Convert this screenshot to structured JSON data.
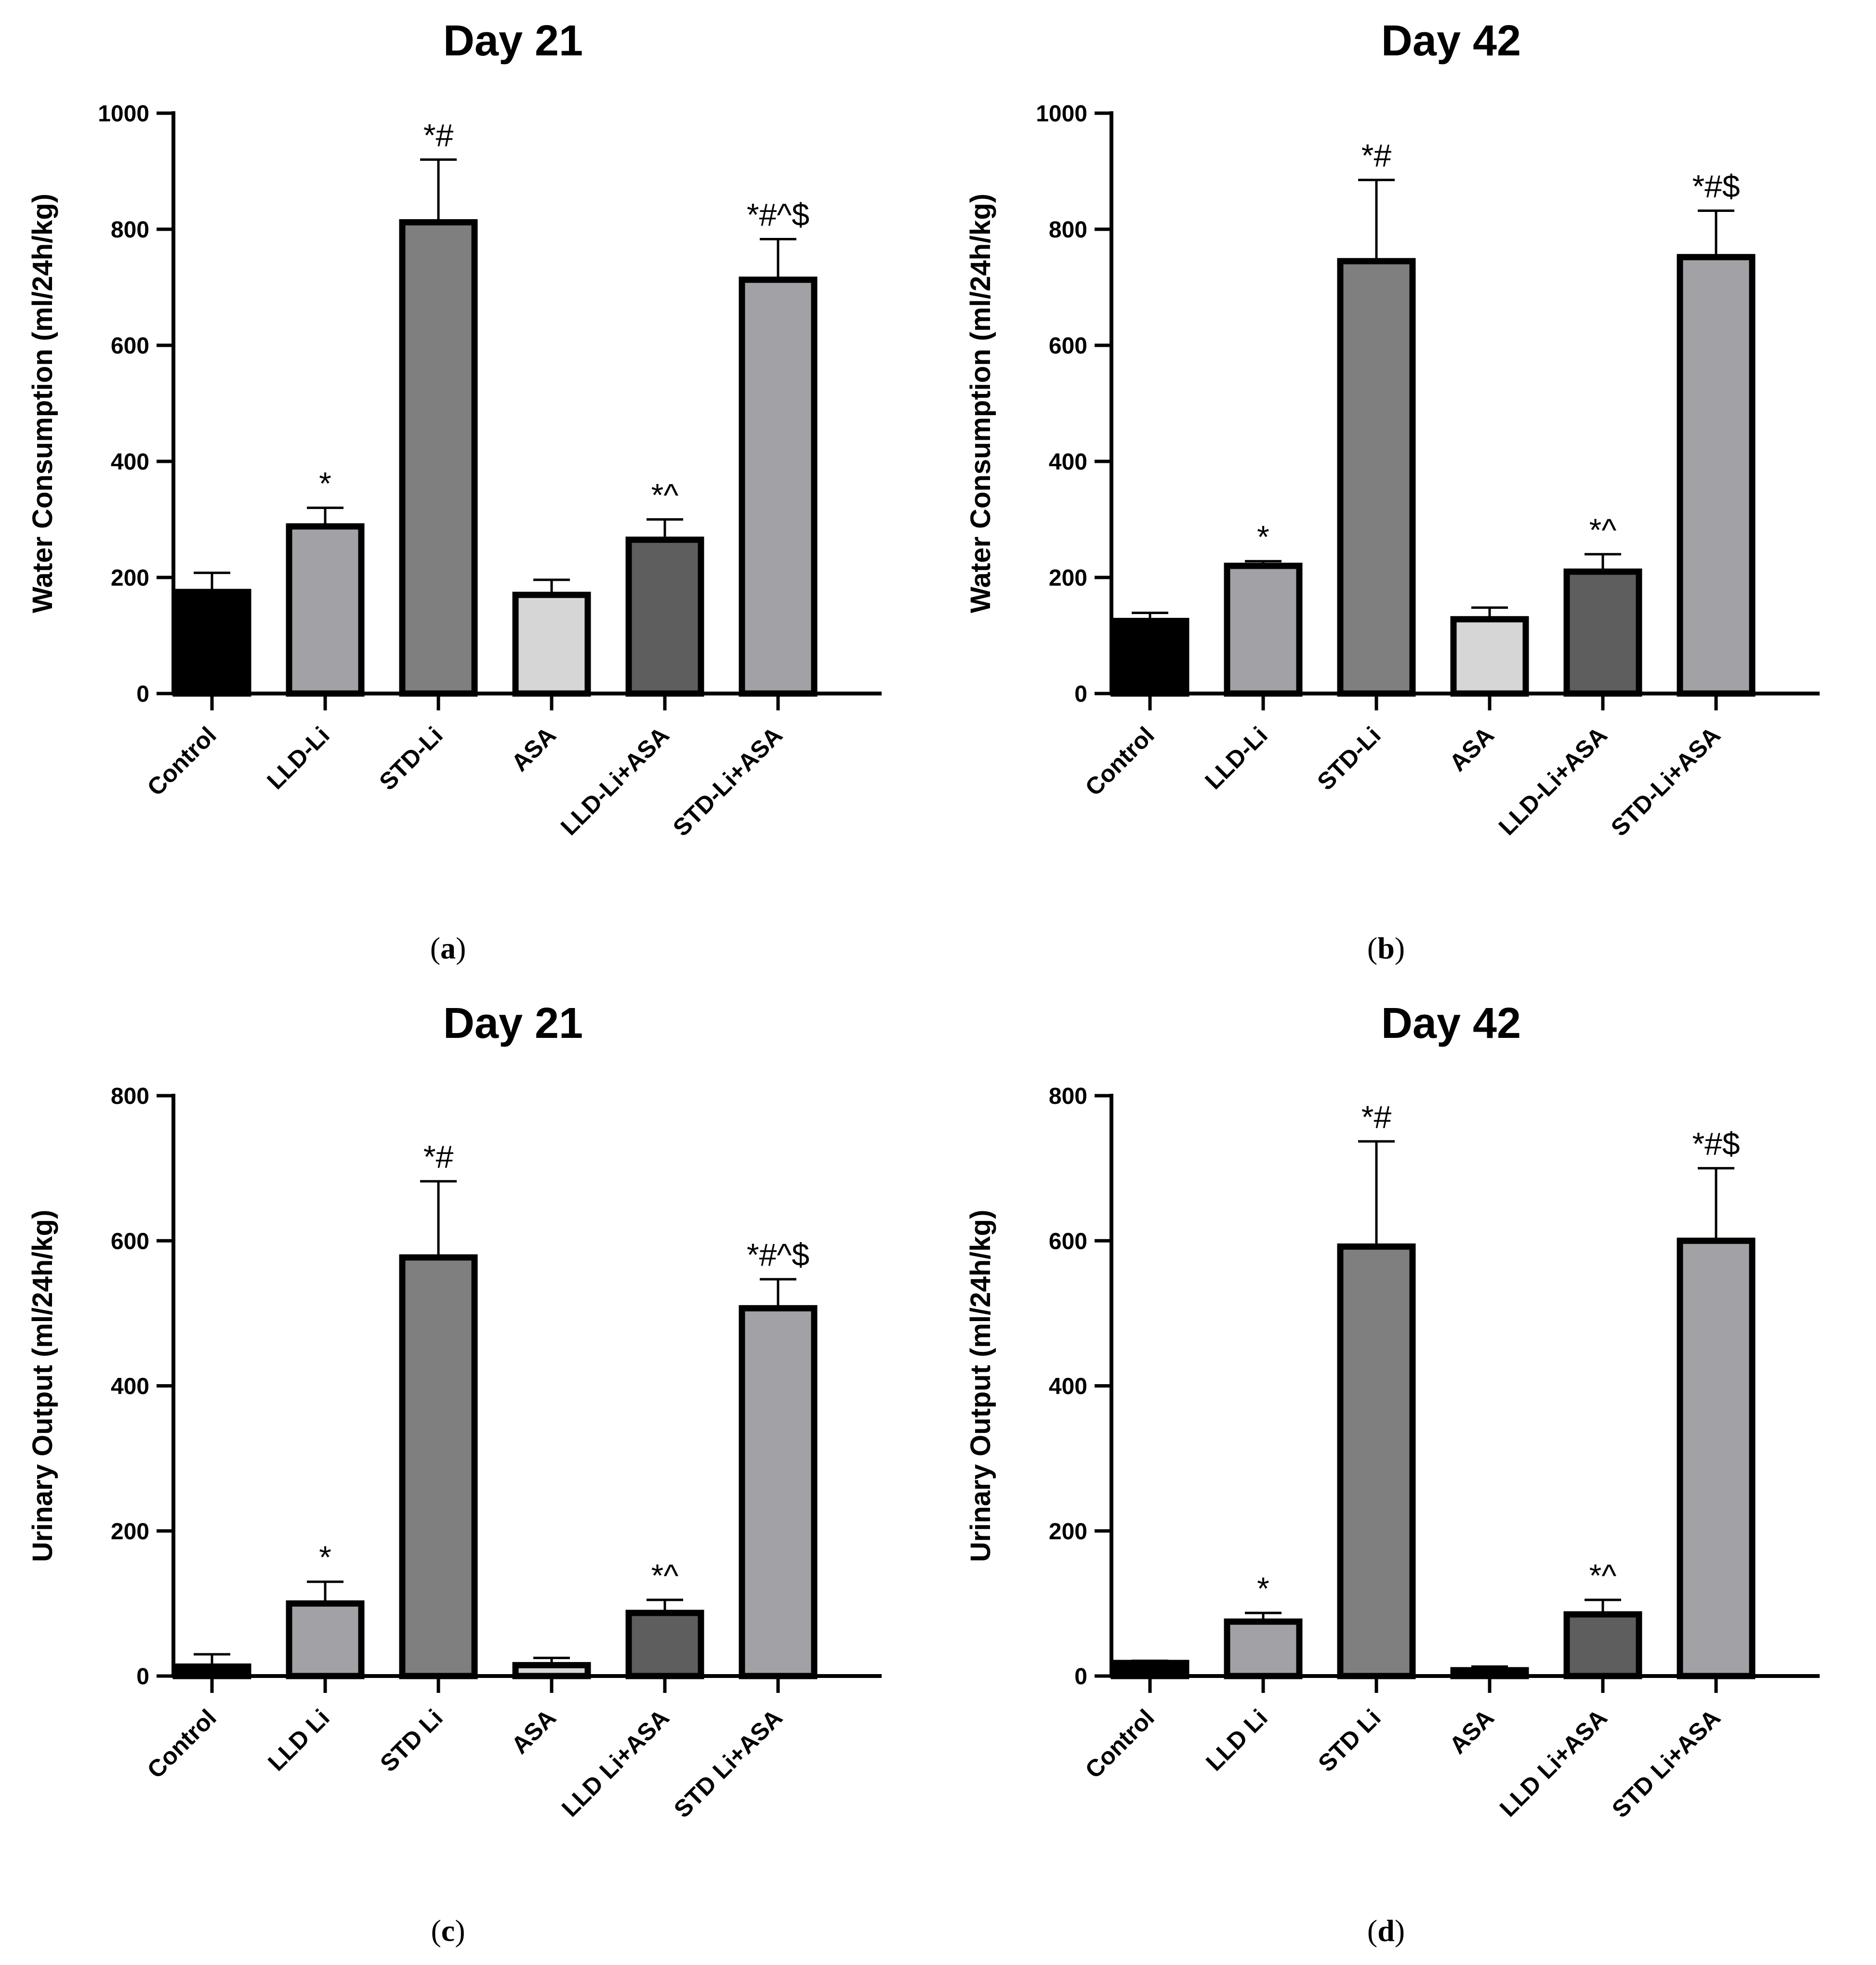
{
  "chart_data": [
    {
      "id": "a",
      "panel_label": "a",
      "type": "bar",
      "title": "Day 21",
      "ylabel": "Water Consumption (ml/24h/kg)",
      "xlabel": "",
      "ylim": [
        0,
        1000
      ],
      "yticks": [
        0,
        200,
        400,
        600,
        800,
        1000
      ],
      "categories": [
        "Control",
        "LLD-Li",
        "STD-Li",
        "ASA",
        "LLD-Li+ASA",
        "STD-Li+ASA"
      ],
      "values": [
        175,
        288,
        812,
        170,
        265,
        713
      ],
      "errors": [
        33,
        32,
        108,
        26,
        35,
        70
      ],
      "significance": [
        "",
        "*",
        "*#",
        "",
        "*^",
        "*#^$"
      ],
      "colors": [
        "#000000",
        "#a2a2a6",
        "#7f7f7f",
        "#d6d6d6",
        "#5e5e5e",
        "#a2a2a6"
      ],
      "grid": false
    },
    {
      "id": "b",
      "panel_label": "b",
      "type": "bar",
      "title": "Day 42",
      "ylabel": "Water Consumption (ml/24h/kg)",
      "xlabel": "",
      "ylim": [
        0,
        1000
      ],
      "yticks": [
        0,
        200,
        400,
        600,
        800,
        1000
      ],
      "categories": [
        "Control",
        "LLD-Li",
        "STD-Li",
        "ASA",
        "LLD-Li+ASA",
        "STD-Li+ASA"
      ],
      "values": [
        125,
        220,
        745,
        128,
        210,
        752
      ],
      "errors": [
        14,
        8,
        140,
        20,
        30,
        80
      ],
      "significance": [
        "",
        "*",
        "*#",
        "",
        "*^",
        "*#$"
      ],
      "colors": [
        "#000000",
        "#a2a2a6",
        "#7f7f7f",
        "#d6d6d6",
        "#5e5e5e",
        "#a2a2a6"
      ],
      "grid": false
    },
    {
      "id": "c",
      "panel_label": "c",
      "type": "bar",
      "title": "Day 21",
      "ylabel": "Urinary Output (ml/24h/kg)",
      "xlabel": "",
      "ylim": [
        0,
        800
      ],
      "yticks": [
        0,
        200,
        400,
        600,
        800
      ],
      "categories": [
        "Control",
        "LLD Li",
        "STD Li",
        "ASA",
        "LLD Li+ASA",
        "STD Li+ASA"
      ],
      "values": [
        13,
        100,
        577,
        15,
        87,
        507
      ],
      "errors": [
        17,
        30,
        105,
        10,
        18,
        40
      ],
      "significance": [
        "",
        "*",
        "*#",
        "",
        "*^",
        "*#^$"
      ],
      "colors": [
        "#000000",
        "#a2a2a6",
        "#7f7f7f",
        "#d6d6d6",
        "#5e5e5e",
        "#a2a2a6"
      ],
      "grid": false
    },
    {
      "id": "d",
      "panel_label": "d",
      "type": "bar",
      "title": "Day 42",
      "ylabel": "Urinary Output (ml/24h/kg)",
      "xlabel": "",
      "ylim": [
        0,
        800
      ],
      "yticks": [
        0,
        200,
        400,
        600,
        800
      ],
      "categories": [
        "Control",
        "LLD Li",
        "STD Li",
        "ASA",
        "LLD Li+ASA",
        "STD Li+ASA"
      ],
      "values": [
        18,
        75,
        592,
        8,
        85,
        600
      ],
      "errors": [
        3,
        12,
        145,
        5,
        20,
        100
      ],
      "significance": [
        "",
        "*",
        "*#",
        "",
        "*^",
        "*#$"
      ],
      "colors": [
        "#000000",
        "#a2a2a6",
        "#7f7f7f",
        "#d6d6d6",
        "#5e5e5e",
        "#a2a2a6"
      ],
      "grid": false
    }
  ]
}
